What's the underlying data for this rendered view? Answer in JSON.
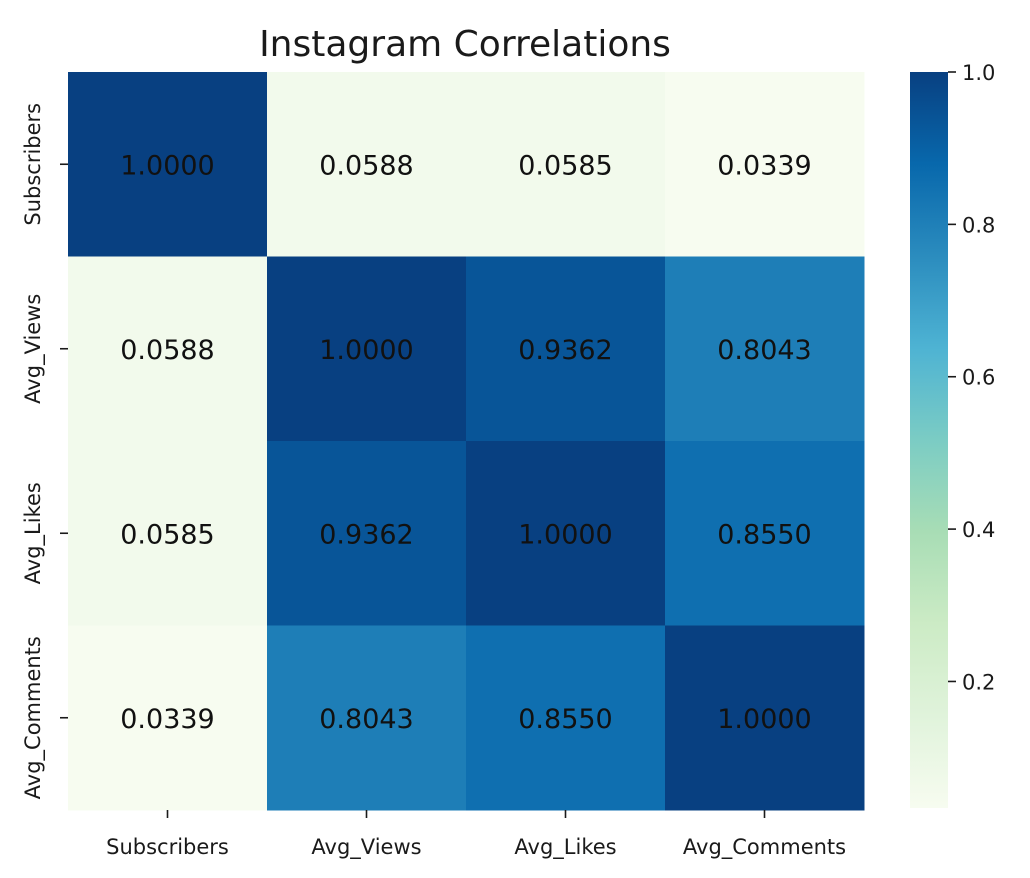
{
  "chart_data": {
    "type": "heatmap",
    "title": "Instagram Correlations",
    "xlabel": "",
    "ylabel": "",
    "x_categories": [
      "Subscribers",
      "Avg_Views",
      "Avg_Likes",
      "Avg_Comments"
    ],
    "y_categories": [
      "Subscribers",
      "Avg_Views",
      "Avg_Likes",
      "Avg_Comments"
    ],
    "values": [
      [
        1.0,
        0.0588,
        0.0585,
        0.0339
      ],
      [
        0.0588,
        1.0,
        0.9362,
        0.8043
      ],
      [
        0.0585,
        0.9362,
        1.0,
        0.855
      ],
      [
        0.0339,
        0.8043,
        0.855,
        1.0
      ]
    ],
    "cell_labels": [
      [
        "1.0000",
        "0.0588",
        "0.0585",
        "0.0339"
      ],
      [
        "0.0588",
        "1.0000",
        "0.9362",
        "0.8043"
      ],
      [
        "0.0585",
        "0.9362",
        "1.0000",
        "0.8550"
      ],
      [
        "0.0339",
        "0.8043",
        "0.8550",
        "1.0000"
      ]
    ],
    "colormap": "GnBu",
    "color_range": [
      0.0339,
      1.0
    ],
    "colorbar": {
      "ticks": [
        0.2,
        0.4,
        0.6,
        0.8,
        1.0
      ],
      "tick_labels": [
        "0.2",
        "0.4",
        "0.6",
        "0.8",
        "1.0"
      ],
      "position": "right"
    },
    "gradient_colors": [
      "#f7fcf0",
      "#e0f3db",
      "#ccebc5",
      "#a8ddb5",
      "#7bccc4",
      "#4eb3d3",
      "#2b8cbe",
      "#0868ac",
      "#084081"
    ]
  }
}
